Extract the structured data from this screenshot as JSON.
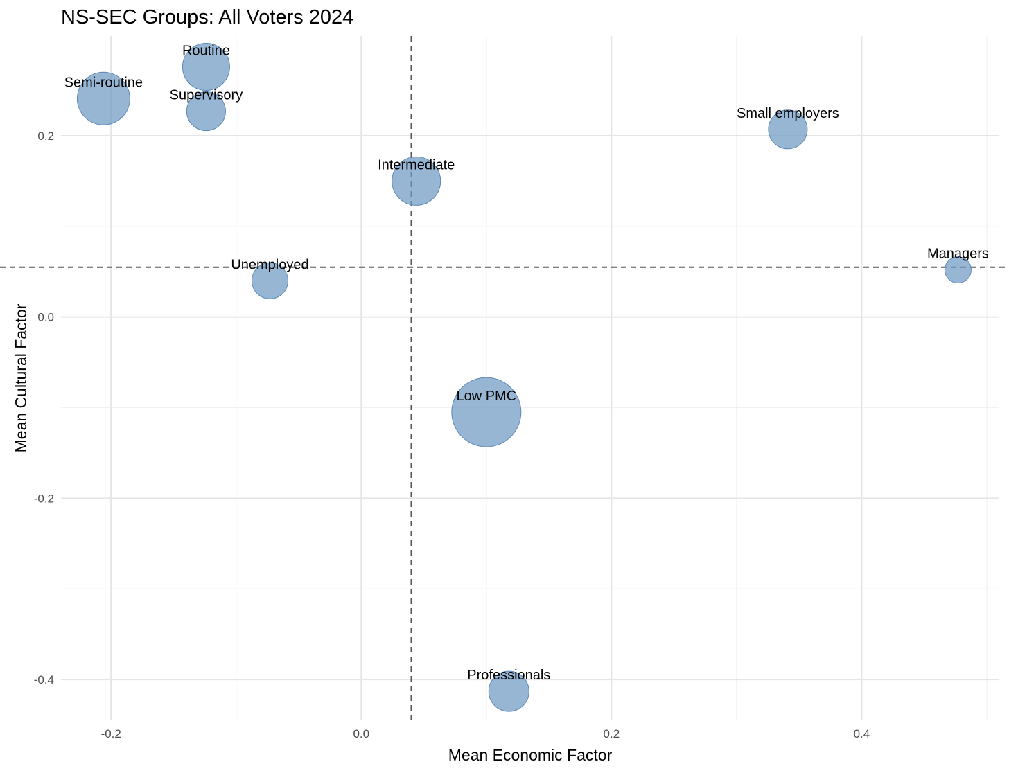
{
  "chart_data": {
    "type": "scatter",
    "title": "NS-SEC Groups: All Voters 2024",
    "xlabel": "Mean Economic Factor",
    "ylabel": "Mean Cultural Factor",
    "xlim": [
      -0.24,
      0.51
    ],
    "ylim": [
      -0.445,
      0.31
    ],
    "x_ticks": [
      -0.2,
      0.0,
      0.2,
      0.4
    ],
    "x_tick_labels": [
      "-0.2",
      "0.0",
      "0.2",
      "0.4"
    ],
    "y_ticks": [
      -0.4,
      -0.2,
      0.0,
      0.2
    ],
    "y_tick_labels": [
      "-0.4",
      "-0.2",
      "0.0",
      "0.2"
    ],
    "x_minor_ticks": [
      -0.1,
      0.1,
      0.3,
      0.5
    ],
    "y_minor_ticks": [
      -0.3,
      -0.1,
      0.1
    ],
    "reference_lines": {
      "x": 0.04,
      "y": 0.055
    },
    "point_color": "#6e9ac4",
    "points": [
      {
        "label": "Semi-routine",
        "x": -0.206,
        "y": 0.241,
        "size": 38
      },
      {
        "label": "Routine",
        "x": -0.124,
        "y": 0.276,
        "size": 34
      },
      {
        "label": "Supervisory",
        "x": -0.124,
        "y": 0.227,
        "size": 28
      },
      {
        "label": "Unemployed",
        "x": -0.073,
        "y": 0.04,
        "size": 26
      },
      {
        "label": "Intermediate",
        "x": 0.044,
        "y": 0.15,
        "size": 35
      },
      {
        "label": "Low PMC",
        "x": 0.1,
        "y": -0.105,
        "size": 50
      },
      {
        "label": "Small employers",
        "x": 0.341,
        "y": 0.207,
        "size": 28
      },
      {
        "label": "Managers",
        "x": 0.477,
        "y": 0.052,
        "size": 19
      },
      {
        "label": "Professionals",
        "x": 0.118,
        "y": -0.413,
        "size": 29
      }
    ]
  }
}
